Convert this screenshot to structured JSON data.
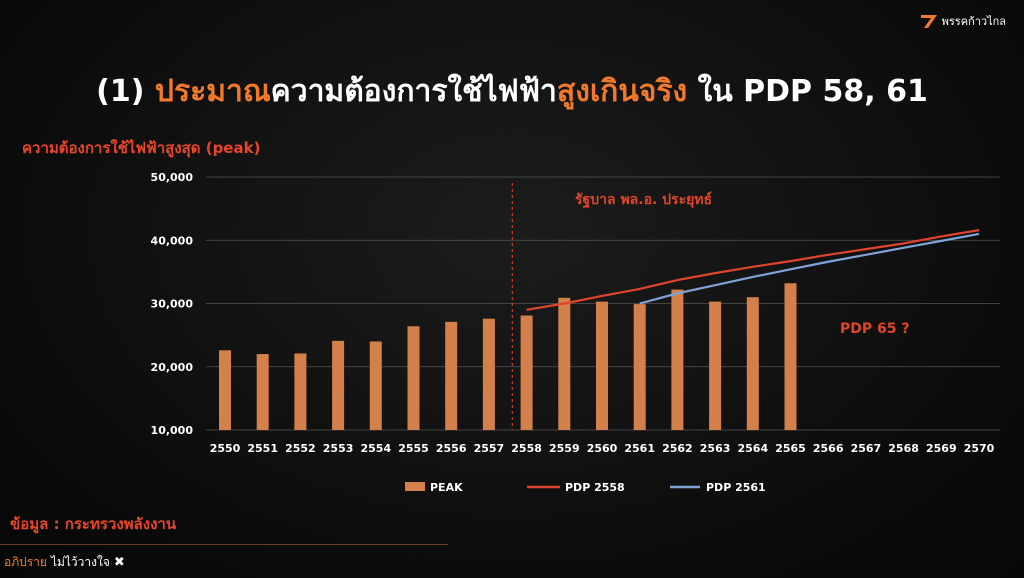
{
  "logo": {
    "text": "พรรคก้าวไกล",
    "icon": "party-logo-icon"
  },
  "title": {
    "part1": "(1) ",
    "part2": "ประมาณ",
    "part3": "ความต้องการใช้ไฟฟ้า",
    "part4": "สูงเกินจริง",
    "part5": " ใน PDP 58, 61"
  },
  "source": "ข้อมูล : กระทรวงพลังงาน",
  "footer": {
    "part1": "อภิปราย",
    "part2": "ไม่ไว้วางใจ",
    "icon": "close-icon",
    "mark": "✖"
  },
  "colors": {
    "bar": "#d4804a",
    "pdp2558": "#e0452b",
    "pdp2561": "#7fa3d6",
    "accent": "#f07a2a"
  },
  "chart_data": {
    "type": "bar",
    "ylabel": "ความต้องการใช้ไฟฟ้าสูงสุด (peak)",
    "ylim": [
      10000,
      50000
    ],
    "yticks": [
      "10,000",
      "20,000",
      "30,000",
      "40,000",
      "50,000"
    ],
    "ytick_values": [
      10000,
      20000,
      30000,
      40000,
      50000
    ],
    "categories": [
      "2550",
      "2551",
      "2552",
      "2553",
      "2554",
      "2555",
      "2556",
      "2557",
      "2558",
      "2559",
      "2560",
      "2561",
      "2562",
      "2563",
      "2564",
      "2565",
      "2566",
      "2567",
      "2568",
      "2569",
      "2570"
    ],
    "series": [
      {
        "name": "PEAK",
        "type": "bar",
        "values": [
          22600,
          22000,
          22100,
          24100,
          24000,
          26400,
          27100,
          27600,
          28100,
          30900,
          30300,
          29900,
          32200,
          30300,
          31000,
          33200,
          null,
          null,
          null,
          null,
          null
        ]
      },
      {
        "name": "PDP 2558",
        "type": "line",
        "values": [
          null,
          null,
          null,
          null,
          null,
          null,
          null,
          null,
          29000,
          30000,
          31200,
          32300,
          33700,
          34800,
          35800,
          36700,
          37700,
          38600,
          39500,
          40600,
          41600
        ]
      },
      {
        "name": "PDP 2561",
        "type": "line",
        "values": [
          null,
          null,
          null,
          null,
          null,
          null,
          null,
          null,
          null,
          null,
          null,
          30000,
          31600,
          32900,
          34200,
          35400,
          36600,
          37700,
          38800,
          39900,
          41000
        ]
      }
    ],
    "grid": true,
    "legend_position": "bottom",
    "annotations": [
      {
        "text": "รัฐบาล พล.อ. ประยุทธ์",
        "category": "2558"
      },
      {
        "text": "PDP 65 ?"
      }
    ]
  }
}
